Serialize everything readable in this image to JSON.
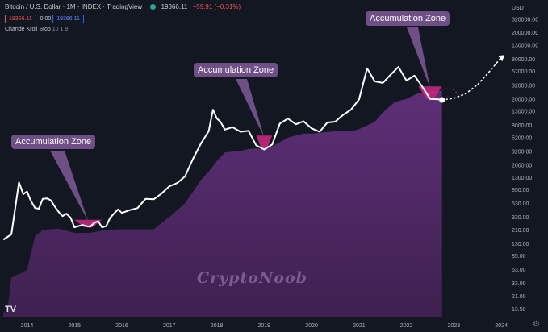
{
  "header": {
    "symbol": "Bitcoin / U.S. Dollar · 1M · INDEX · TradingView",
    "price": "19366.11",
    "change": "−59.91 (−0.31%)",
    "bid": "19366.11",
    "spread": "0.00",
    "ask": "19366.11",
    "indicator_name": "Chande Kroll Stop",
    "indicator_params": "10 1 9"
  },
  "annotations": [
    "Accumulation Zone",
    "Accumulation Zone",
    "Accumulation Zone"
  ],
  "watermark": "CryptoNoob",
  "logo_text": "TV",
  "settings_icon": "gear-icon",
  "colors": {
    "background": "#131722",
    "price_line": "#ffffff",
    "stop_area": "#5b2d72",
    "accumulation": "#c4287f",
    "annotation_bg": "#6f4f86"
  },
  "chart_data": {
    "type": "line",
    "title": "Bitcoin / U.S. Dollar · 1M · INDEX · TradingView",
    "yscale": "log",
    "ylim": [
      10,
      500000
    ],
    "y_tick_labels": [
      "USD",
      "320000.00",
      "200000.00",
      "130000.00",
      "80000.00",
      "52000.00",
      "32000.00",
      "20000.00",
      "13000.00",
      "8000.00",
      "5200.00",
      "3200.00",
      "2000.00",
      "1300.00",
      "850.00",
      "530.00",
      "330.00",
      "210.00",
      "130.00",
      "85.00",
      "53.00",
      "33.00",
      "21.00",
      "13.50"
    ],
    "x_tick_labels": [
      "2014",
      "2015",
      "2016",
      "2017",
      "2018",
      "2019",
      "2020",
      "2021",
      "2022",
      "2023",
      "2024"
    ],
    "grid": false,
    "series": [
      {
        "name": "BTCUSD",
        "x": [
          2013.5,
          2013.67,
          2013.83,
          2013.92,
          2014.0,
          2014.08,
          2014.17,
          2014.25,
          2014.33,
          2014.42,
          2014.5,
          2014.58,
          2014.67,
          2014.75,
          2014.83,
          2014.92,
          2015.0,
          2015.08,
          2015.17,
          2015.25,
          2015.33,
          2015.42,
          2015.5,
          2015.58,
          2015.67,
          2015.75,
          2015.83,
          2015.92,
          2016.0,
          2016.17,
          2016.33,
          2016.5,
          2016.67,
          2016.83,
          2017.0,
          2017.17,
          2017.33,
          2017.5,
          2017.67,
          2017.83,
          2017.92,
          2018.0,
          2018.08,
          2018.17,
          2018.33,
          2018.5,
          2018.67,
          2018.83,
          2018.92,
          2019.0,
          2019.17,
          2019.33,
          2019.5,
          2019.67,
          2019.83,
          2020.0,
          2020.17,
          2020.33,
          2020.5,
          2020.67,
          2020.83,
          2021.0,
          2021.17,
          2021.33,
          2021.5,
          2021.67,
          2021.83,
          2022.0,
          2022.17,
          2022.33,
          2022.5,
          2022.67,
          2022.75
        ],
        "values": [
          150,
          180,
          1100,
          730,
          800,
          580,
          450,
          440,
          620,
          630,
          590,
          480,
          390,
          340,
          370,
          320,
          230,
          240,
          250,
          240,
          235,
          270,
          285,
          230,
          240,
          320,
          370,
          430,
          380,
          420,
          450,
          620,
          610,
          740,
          960,
          1080,
          1350,
          2500,
          4300,
          6500,
          13800,
          10200,
          9000,
          6900,
          7500,
          6400,
          6600,
          4000,
          3700,
          3450,
          4100,
          8500,
          10100,
          8300,
          9200,
          7200,
          6400,
          8800,
          9100,
          11600,
          13800,
          19700,
          58000,
          37000,
          35000,
          47000,
          61000,
          38000,
          45000,
          31000,
          20000,
          19800,
          19366
        ]
      },
      {
        "name": "Chande Kroll Stop",
        "x": [
          2013.5,
          2013.58,
          2013.67,
          2013.83,
          2014.0,
          2014.17,
          2014.33,
          2014.5,
          2014.67,
          2014.83,
          2015.0,
          2015.33,
          2015.67,
          2016.0,
          2016.5,
          2016.67,
          2017.0,
          2017.17,
          2017.33,
          2017.5,
          2017.67,
          2017.83,
          2018.0,
          2018.17,
          2018.5,
          2018.67,
          2018.83,
          2019.0,
          2019.17,
          2019.5,
          2019.83,
          2020.0,
          2020.5,
          2020.83,
          2021.0,
          2021.33,
          2021.5,
          2021.75,
          2022.0,
          2022.25,
          2022.5,
          2022.75
        ],
        "values": [
          12,
          12,
          40,
          45,
          52,
          170,
          210,
          215,
          220,
          205,
          190,
          190,
          210,
          215,
          215,
          215,
          330,
          420,
          530,
          800,
          1200,
          1600,
          2300,
          3100,
          3300,
          3500,
          3600,
          3450,
          3850,
          5200,
          6000,
          6000,
          6500,
          6500,
          7000,
          9000,
          12500,
          18000,
          20000,
          24500,
          26000,
          26500
        ]
      }
    ],
    "accumulation_zones": [
      {
        "x": [
          2015.0,
          2015.58
        ],
        "low": 230,
        "high": 300
      },
      {
        "x": [
          2018.83,
          2019.17
        ],
        "low": 3450,
        "high": 5600
      },
      {
        "x": [
          2022.25,
          2022.75
        ],
        "low": 20000,
        "high": 31000
      }
    ],
    "projection": {
      "x": [
        2022.75,
        2023.0,
        2023.25,
        2023.5,
        2023.75,
        2024.0
      ],
      "values": [
        19366,
        20500,
        24000,
        33000,
        52000,
        85000
      ]
    }
  }
}
